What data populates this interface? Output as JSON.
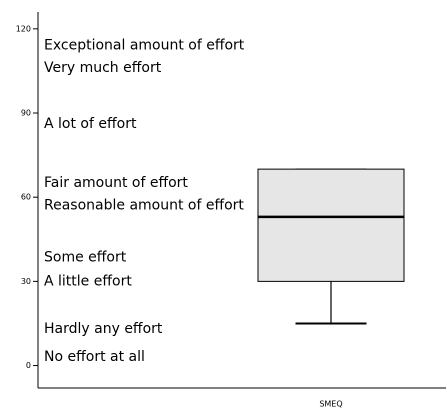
{
  "chart_data": {
    "type": "box",
    "categories": [
      "SMEQ"
    ],
    "boxes": [
      {
        "min": 15,
        "q1": 30,
        "median": 53,
        "q3": 70,
        "max": 70
      }
    ],
    "color": "#e6e6e6",
    "ylim": [
      -8,
      126
    ],
    "yticks": [
      0,
      30,
      60,
      90,
      120
    ],
    "annotations": [
      {
        "text": "Exceptional amount of effort",
        "y": 114
      },
      {
        "text": "Very much effort",
        "y": 106
      },
      {
        "text": "A lot of effort",
        "y": 86
      },
      {
        "text": "Fair amount of effort",
        "y": 65
      },
      {
        "text": "Reasonable amount of effort",
        "y": 57
      },
      {
        "text": "Some effort",
        "y": 38.5
      },
      {
        "text": "A little effort",
        "y": 30
      },
      {
        "text": "Hardly any effort",
        "y": 13
      },
      {
        "text": "No effort at all",
        "y": 3
      }
    ]
  }
}
